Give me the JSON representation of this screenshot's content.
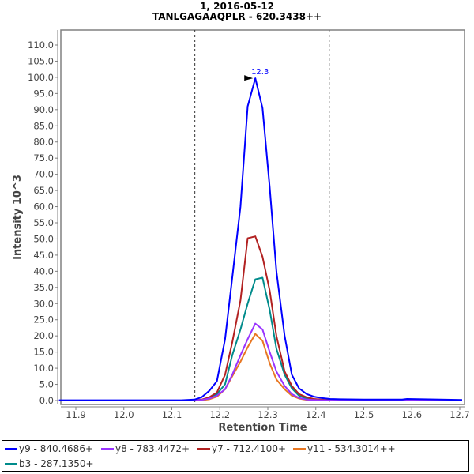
{
  "chart_title": "1, 2016-05-12",
  "chart_subtitle": "TANLGAGAAQPLR - 620.3438++",
  "chart_data": {
    "type": "line",
    "title": "1, 2016-05-12",
    "subtitle": "TANLGAGAAQPLR - 620.3438++",
    "xlabel": "Retention Time",
    "ylabel": "Intensity 10^3",
    "xlim": [
      11.865,
      12.705
    ],
    "ylim": [
      0,
      112
    ],
    "x_ticks": [
      "11.9",
      "12.0",
      "12.1",
      "12.2",
      "12.3",
      "12.4",
      "12.5",
      "12.6",
      "12.7"
    ],
    "y_ticks": [
      "0.0",
      "5.0",
      "10.0",
      "15.0",
      "20.0",
      "25.0",
      "30.0",
      "35.0",
      "40.0",
      "45.0",
      "50.0",
      "55.0",
      "60.0",
      "65.0",
      "70.0",
      "75.0",
      "80.0",
      "85.0",
      "90.0",
      "95.0",
      "100.0",
      "105.0",
      "110.0"
    ],
    "grid": false,
    "legend_position": "bottom",
    "integration_boundaries": [
      12.148,
      12.428
    ],
    "peak_annotation": {
      "label": "12.3",
      "x": 12.274,
      "y": 99.7,
      "color": "#0000ff"
    },
    "x": [
      11.865,
      12.12,
      12.147,
      12.162,
      12.178,
      12.194,
      12.211,
      12.226,
      12.243,
      12.258,
      12.274,
      12.289,
      12.304,
      12.318,
      12.335,
      12.35,
      12.365,
      12.381,
      12.396,
      12.411,
      12.43,
      12.45,
      12.5,
      12.58,
      12.59,
      12.705
    ],
    "series": [
      {
        "name": "y9 - 840.4686+",
        "color": "#0000ff",
        "values": [
          0.1,
          0.1,
          0.3,
          1.0,
          3.0,
          6.0,
          19.0,
          38.0,
          60.0,
          91.0,
          99.7,
          90.5,
          66.0,
          40.0,
          20.0,
          8.0,
          3.8,
          2.0,
          1.2,
          0.8,
          0.5,
          0.4,
          0.3,
          0.3,
          0.5,
          0.2
        ]
      },
      {
        "name": "y8 - 783.4472+",
        "color": "#9933ff",
        "values": [
          0.0,
          0.0,
          0.0,
          0.2,
          0.6,
          1.5,
          3.5,
          8.0,
          14.0,
          19.0,
          23.8,
          22.0,
          15.0,
          9.0,
          4.5,
          2.0,
          0.8,
          0.3,
          0.2,
          0.1,
          0.0,
          0.0,
          0.0,
          0.0,
          0.0,
          0.0
        ]
      },
      {
        "name": "y7 - 712.4100+",
        "color": "#b22222",
        "values": [
          0.0,
          0.0,
          0.1,
          0.3,
          1.0,
          2.5,
          8.0,
          18.0,
          31.0,
          50.2,
          50.8,
          44.5,
          34.0,
          20.0,
          9.0,
          4.5,
          2.0,
          1.0,
          0.5,
          0.3,
          0.1,
          0.0,
          0.0,
          0.0,
          0.0,
          0.0
        ]
      },
      {
        "name": "y11 - 534.3014++",
        "color": "#e87722",
        "values": [
          0.0,
          0.0,
          0.0,
          0.1,
          0.4,
          1.2,
          3.5,
          7.5,
          12.0,
          16.5,
          20.6,
          18.5,
          11.5,
          6.5,
          3.5,
          1.5,
          0.6,
          0.2,
          0.1,
          0.0,
          0.0,
          0.0,
          0.0,
          0.0,
          0.0,
          0.0
        ]
      },
      {
        "name": "b3 - 287.1350+",
        "color": "#008b8b",
        "values": [
          0.0,
          0.0,
          0.1,
          0.2,
          0.8,
          2.0,
          5.0,
          14.0,
          22.0,
          30.0,
          37.5,
          38.0,
          28.0,
          16.0,
          8.0,
          3.8,
          1.5,
          0.6,
          0.3,
          0.1,
          0.0,
          0.0,
          0.0,
          0.0,
          0.0,
          0.0
        ]
      }
    ]
  },
  "legend": {
    "items": [
      {
        "label": "y9 - 840.4686+",
        "color": "#0000ff"
      },
      {
        "label": "y8 - 783.4472+",
        "color": "#9933ff"
      },
      {
        "label": "y7 - 712.4100+",
        "color": "#b22222"
      },
      {
        "label": "y11 - 534.3014++",
        "color": "#e87722"
      },
      {
        "label": "b3 - 287.1350+",
        "color": "#008b8b"
      }
    ]
  }
}
